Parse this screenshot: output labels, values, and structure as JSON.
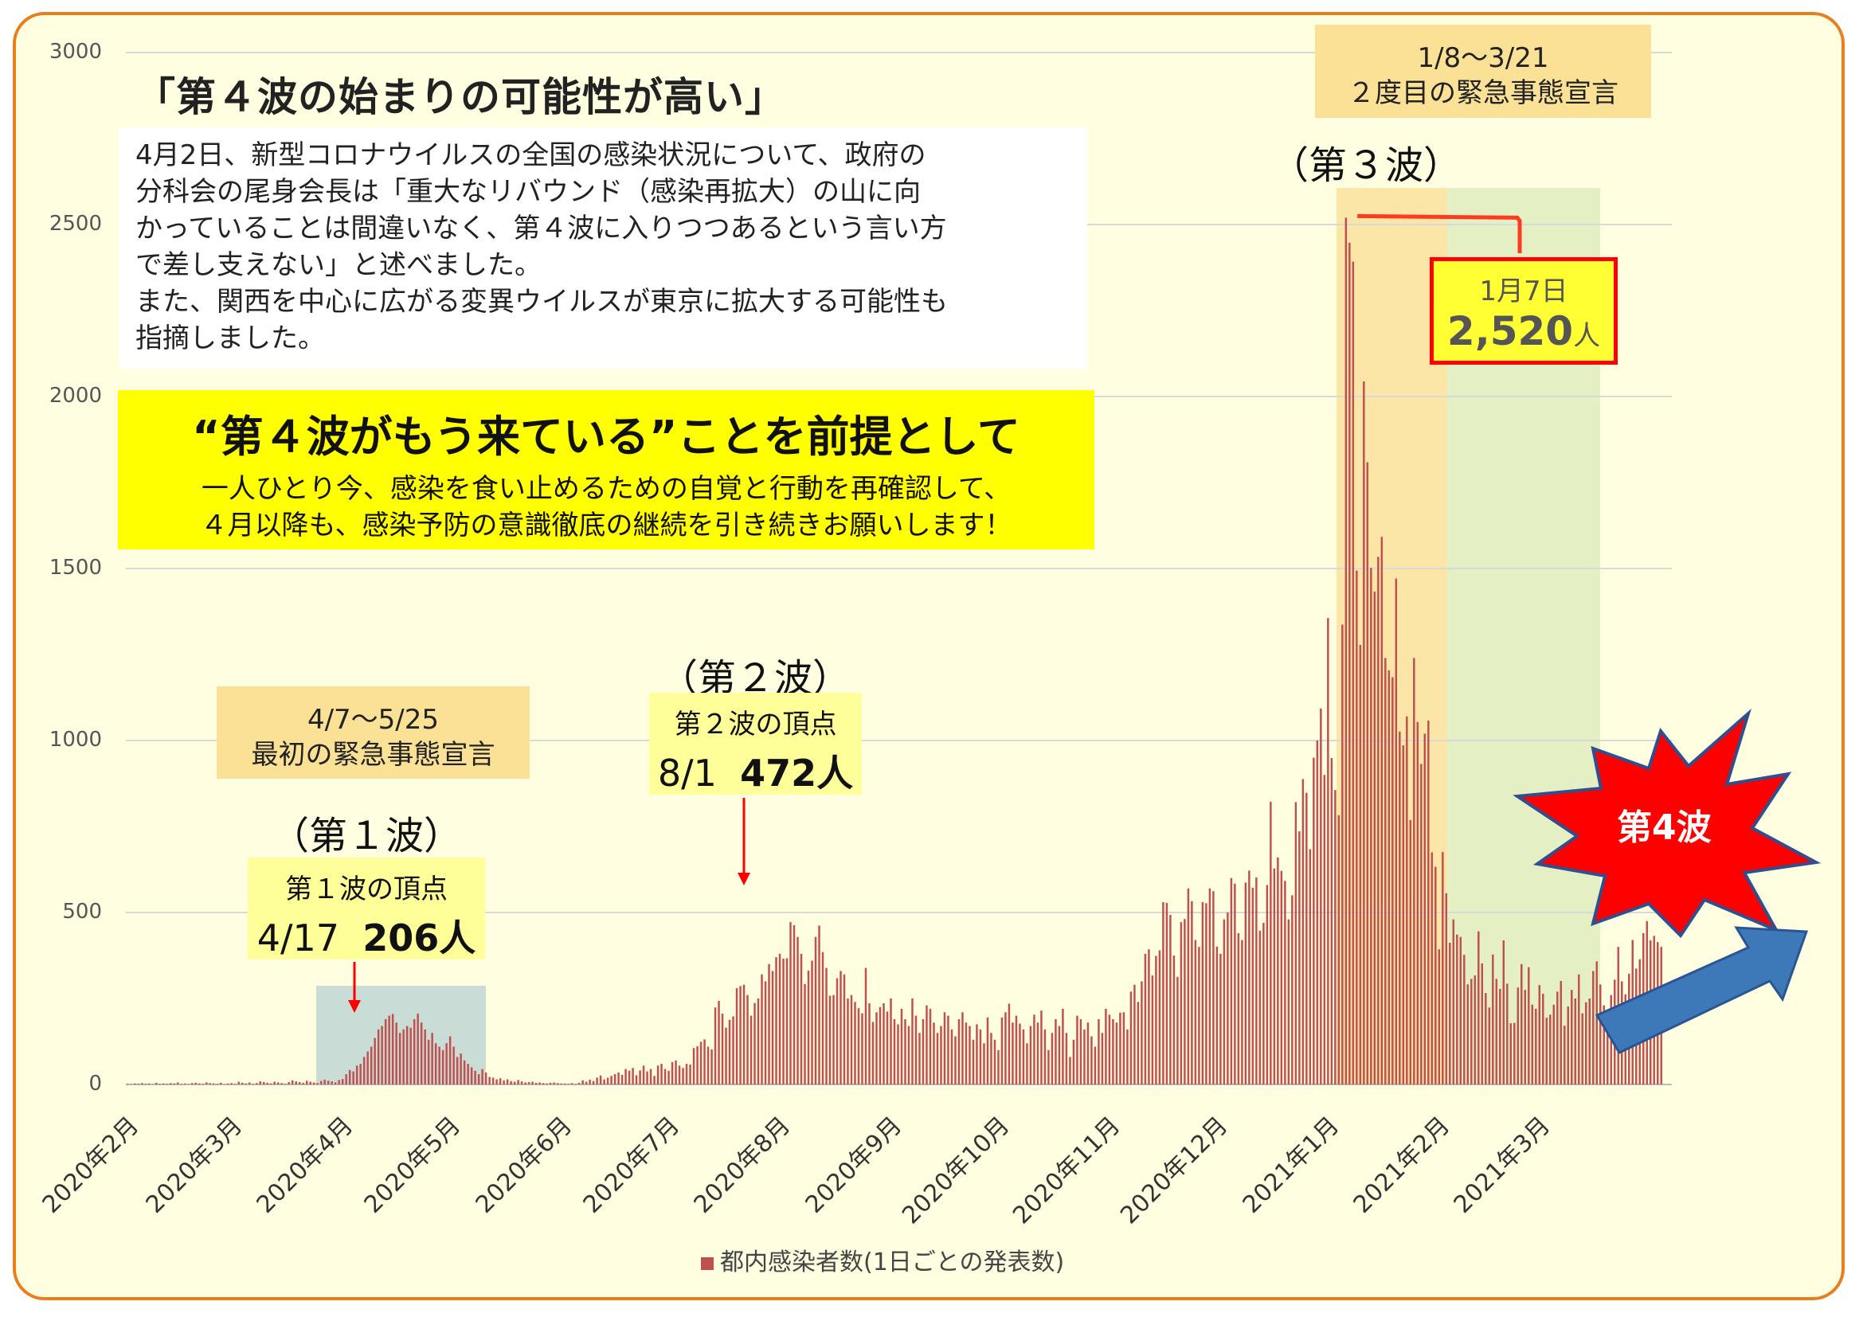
{
  "title": "「第４波の始まりの可能性が高い」",
  "note_lines": [
    "4月2日、新型コロナウイルスの全国の感染状況について、政府の",
    "分科会の尾身会長は「重大なリバウンド（感染再拡大）の山に向",
    "かっていることは間違いなく、第４波に入りつつあるという言い方",
    "で差し支えない」と述べました。",
    "また、関西を中心に広がる変異ウイルスが東京に拡大する可能性も",
    "指摘しました。"
  ],
  "callout": {
    "headline": "“第４波がもう来ている”ことを前提として",
    "line1": "一人ひとり今、感染を食い止めるための自覚と行動を再確認して、",
    "line2": "４月以降も、感染予防の意識徹底の継続を引き続きお願いします！"
  },
  "emergency1": {
    "dates": "4/7〜5/25",
    "label": "最初の緊急事態宣言"
  },
  "emergency2": {
    "dates": "1/8〜3/21",
    "label": "２度目の緊急事態宣言"
  },
  "waves": {
    "wave1": "（第１波）",
    "wave2": "（第２波）",
    "wave3": "（第３波）",
    "wave4": "第4波"
  },
  "peaks": {
    "peak1": {
      "label": "第１波の頂点",
      "date": "4/17",
      "value": "206人"
    },
    "peak2": {
      "label": "第２波の頂点",
      "date": "8/1",
      "value": "472人"
    },
    "peak3": {
      "label": "1月7日",
      "value": "2,520",
      "unit": "人"
    }
  },
  "colors": {
    "bar": "#c0504d",
    "frame": "#e87f1c",
    "background": "#fffee1",
    "callout": "#ffff00",
    "emergency_label": "#fbe196",
    "shade_wave1": "#c9dcd6",
    "shade_wave3_orange": "#fbe6a8",
    "shade_wave3_green": "#e4f0c4",
    "arrow": "#3d78b8",
    "starburst": "#ff0000"
  },
  "chart_data": {
    "type": "bar",
    "legend": "都内感染者数(1日ごとの発表数)",
    "legend_position": "bottom",
    "ylim": [
      0,
      3000
    ],
    "y_ticks": [
      "3000",
      "2500",
      "2000",
      "1500",
      "1000",
      "500",
      "0"
    ],
    "x_ticks": [
      "2020年2月",
      "2020年3月",
      "2020年4月",
      "2020年5月",
      "2020年6月",
      "2020年7月",
      "2020年8月",
      "2020年9月",
      "2020年10月",
      "2020年11月",
      "2020年12月",
      "2021年1月",
      "2021年2月",
      "2021年3月"
    ],
    "x_start": "2020-02-01",
    "x_end": "2021-04-03",
    "grid": true,
    "series": [
      {
        "name": "都内感染者数(1日ごとの発表数)",
        "values": [
          2,
          1,
          3,
          2,
          4,
          2,
          3,
          1,
          5,
          2,
          3,
          2,
          4,
          3,
          6,
          2,
          3,
          1,
          4,
          5,
          3,
          2,
          6,
          4,
          3,
          2,
          5,
          1,
          3,
          4,
          2,
          8,
          5,
          3,
          6,
          2,
          4,
          9,
          7,
          5,
          3,
          8,
          6,
          4,
          2,
          7,
          12,
          9,
          7,
          5,
          11,
          8,
          6,
          4,
          10,
          14,
          11,
          9,
          6,
          13,
          16,
          30,
          42,
          38,
          55,
          60,
          80,
          96,
          110,
          135,
          160,
          170,
          190,
          200,
          205,
          180,
          150,
          160,
          170,
          165,
          190,
          206,
          180,
          160,
          130,
          150,
          120,
          110,
          100,
          120,
          140,
          110,
          80,
          90,
          70,
          60,
          50,
          40,
          30,
          45,
          35,
          22,
          20,
          15,
          18,
          12,
          15,
          10,
          8,
          13,
          9,
          6,
          7,
          8,
          5,
          6,
          4,
          3,
          5,
          6,
          4,
          3,
          3,
          2,
          4,
          2,
          5,
          12,
          8,
          14,
          10,
          20,
          26,
          15,
          20,
          25,
          30,
          35,
          28,
          45,
          40,
          48,
          27,
          41,
          55,
          38,
          45,
          25,
          55,
          60,
          45,
          40,
          65,
          70,
          55,
          48,
          60,
          58,
          106,
          111,
          124,
          131,
          110,
          102,
          224,
          243,
          206,
          165,
          188,
          198,
          280,
          286,
          290,
          260,
          200,
          237,
          250,
          320,
          300,
          350,
          330,
          370,
          380,
          366,
          367,
          472,
          463,
          429,
          380,
          292,
          331,
          360,
          429,
          462,
          385,
          339,
          258,
          260,
          309,
          330,
          320,
          250,
          260,
          240,
          222,
          207,
          339,
          236,
          182,
          210,
          225,
          236,
          212,
          250,
          190,
          175,
          220,
          190,
          170,
          250,
          200,
          150,
          190,
          230,
          220,
          180,
          150,
          170,
          210,
          200,
          160,
          140,
          190,
          210,
          180,
          170,
          130,
          175,
          160,
          120,
          195,
          150,
          130,
          100,
          195,
          210,
          235,
          180,
          200,
          177,
          160,
          120,
          170,
          203,
          180,
          215,
          160,
          100,
          150,
          190,
          170,
          220,
          150,
          80,
          130,
          200,
          190,
          160,
          180,
          140,
          110,
          190,
          150,
          220,
          203,
          190,
          180,
          209,
          210,
          160,
          270,
          290,
          240,
          300,
          380,
          393,
          317,
          374,
          390,
          530,
          528,
          493,
          375,
          313,
          472,
          481,
          570,
          533,
          420,
          400,
          530,
          527,
          570,
          562,
          401,
          380,
          480,
          500,
          600,
          584,
          440,
          420,
          587,
          622,
          572,
          602,
          447,
          470,
          580,
          822,
          628,
          660,
          621,
          592,
          480,
          550,
          821,
          736,
          888,
          848,
          684,
          950,
          1000,
          1093,
          900,
          1356,
          949,
          856,
          783,
          1337,
          2520,
          2447,
          2392,
          1494,
          1278,
          2044,
          1809,
          1502,
          1433,
          1534,
          1592,
          1240,
          1204,
          1184,
          1471,
          1026,
          986,
          1070,
          769,
          1240,
          1054,
          932,
          1020,
          1058,
          675,
          633,
          393,
          676,
          556,
          412,
          480,
          436,
          429,
          377,
          291,
          307,
          317,
          445,
          352,
          266,
          224,
          378,
          307,
          278,
          419,
          293,
          178,
          179,
          282,
          350,
          275,
          341,
          232,
          220,
          289,
          264,
          194,
          203,
          232,
          270,
          301,
          171,
          227,
          275,
          250,
          320,
          207,
          239,
          250,
          330,
          358,
          291,
          230,
          190,
          260,
          305,
          400,
          300,
          262,
          322,
          420,
          337,
          364,
          440,
          475,
          419,
          432,
          414,
          400
        ]
      }
    ],
    "annotations": [
      {
        "date": "2020-04-17",
        "value": 206
      },
      {
        "date": "2020-08-01",
        "value": 472
      },
      {
        "date": "2021-01-07",
        "value": 2520
      }
    ]
  }
}
